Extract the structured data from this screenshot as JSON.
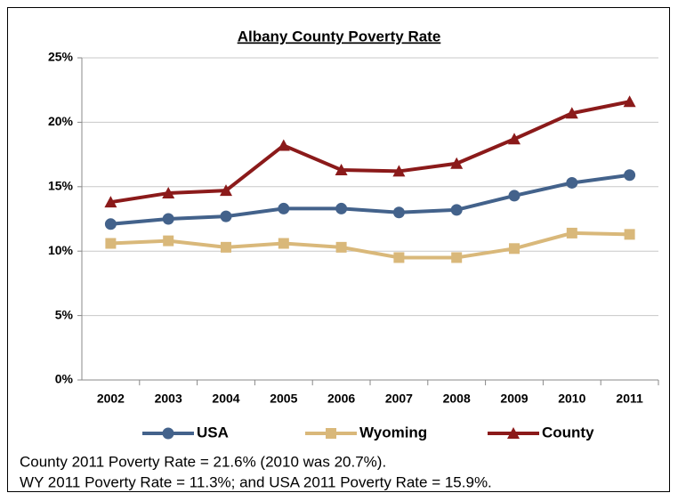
{
  "chart_data": {
    "type": "line",
    "title": "Albany County Poverty Rate",
    "categories": [
      "2002",
      "2003",
      "2004",
      "2005",
      "2006",
      "2007",
      "2008",
      "2009",
      "2010",
      "2011"
    ],
    "series": [
      {
        "name": "USA",
        "color": "#43628b",
        "marker": "circle",
        "values": [
          12.1,
          12.5,
          12.7,
          13.3,
          13.3,
          13.0,
          13.2,
          14.3,
          15.3,
          15.9
        ]
      },
      {
        "name": "Wyoming",
        "color": "#d9b87a",
        "marker": "square",
        "values": [
          10.6,
          10.8,
          10.3,
          10.6,
          10.3,
          9.5,
          9.5,
          10.2,
          11.4,
          11.3
        ]
      },
      {
        "name": "County",
        "color": "#8b1a1a",
        "marker": "triangle",
        "values": [
          13.8,
          14.5,
          14.7,
          18.2,
          16.3,
          16.2,
          16.8,
          18.7,
          20.7,
          21.6
        ]
      }
    ],
    "ylim": [
      0,
      25
    ],
    "yticks": [
      {
        "value": 0,
        "label": "0%"
      },
      {
        "value": 5,
        "label": "5%"
      },
      {
        "value": 10,
        "label": "10%"
      },
      {
        "value": 15,
        "label": "15%"
      },
      {
        "value": 20,
        "label": "20%"
      },
      {
        "value": 25,
        "label": "25%"
      }
    ],
    "grid": true,
    "legend": "bottom",
    "notes": [
      "County 2011 Poverty Rate = 21.6% (2010 was 20.7%).",
      "WY 2011 Poverty Rate = 11.3%; and USA 2011 Poverty Rate = 15.9%."
    ]
  }
}
